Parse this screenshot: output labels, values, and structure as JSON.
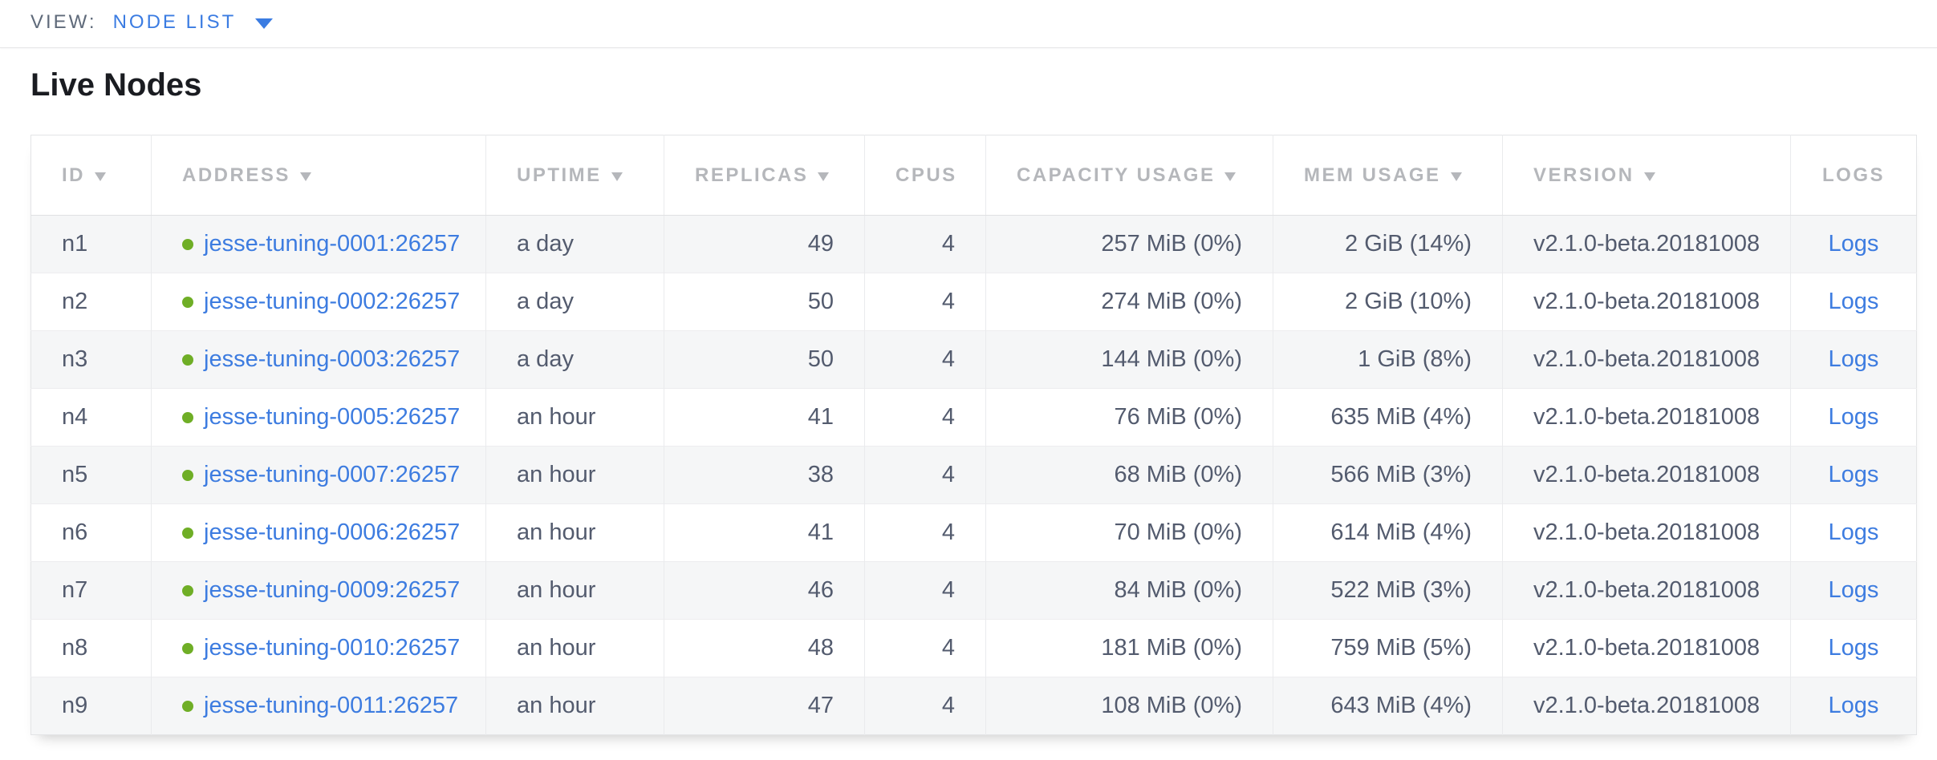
{
  "view_bar": {
    "label": "VIEW:",
    "selected": "NODE LIST",
    "dropdown_icon": "caret-down-icon"
  },
  "page": {
    "title": "Live Nodes"
  },
  "table": {
    "columns": [
      {
        "key": "id",
        "label": "ID",
        "sortable": true,
        "cell_align": "left",
        "header_align": "left"
      },
      {
        "key": "address",
        "label": "ADDRESS",
        "sortable": true,
        "cell_align": "left",
        "header_align": "left"
      },
      {
        "key": "uptime",
        "label": "UPTIME",
        "sortable": true,
        "cell_align": "left",
        "header_align": "left"
      },
      {
        "key": "replicas",
        "label": "REPLICAS",
        "sortable": true,
        "cell_align": "right",
        "header_align": "left"
      },
      {
        "key": "cpus",
        "label": "CPUS",
        "sortable": false,
        "cell_align": "right",
        "header_align": "left"
      },
      {
        "key": "capacity",
        "label": "CAPACITY USAGE",
        "sortable": true,
        "cell_align": "right",
        "header_align": "left"
      },
      {
        "key": "mem",
        "label": "MEM USAGE",
        "sortable": true,
        "cell_align": "right",
        "header_align": "left"
      },
      {
        "key": "version",
        "label": "VERSION",
        "sortable": true,
        "cell_align": "left",
        "header_align": "left"
      },
      {
        "key": "logs",
        "label": "LOGS",
        "sortable": false,
        "cell_align": "center",
        "header_align": "center"
      }
    ],
    "rows": [
      {
        "id": "n1",
        "status": "live",
        "address": "jesse-tuning-0001:26257",
        "uptime": "a day",
        "replicas": "49",
        "cpus": "4",
        "capacity": "257 MiB (0%)",
        "mem": "2 GiB (14%)",
        "version": "v2.1.0-beta.20181008",
        "logs": "Logs"
      },
      {
        "id": "n2",
        "status": "live",
        "address": "jesse-tuning-0002:26257",
        "uptime": "a day",
        "replicas": "50",
        "cpus": "4",
        "capacity": "274 MiB (0%)",
        "mem": "2 GiB (10%)",
        "version": "v2.1.0-beta.20181008",
        "logs": "Logs"
      },
      {
        "id": "n3",
        "status": "live",
        "address": "jesse-tuning-0003:26257",
        "uptime": "a day",
        "replicas": "50",
        "cpus": "4",
        "capacity": "144 MiB (0%)",
        "mem": "1 GiB (8%)",
        "version": "v2.1.0-beta.20181008",
        "logs": "Logs"
      },
      {
        "id": "n4",
        "status": "live",
        "address": "jesse-tuning-0005:26257",
        "uptime": "an hour",
        "replicas": "41",
        "cpus": "4",
        "capacity": "76 MiB (0%)",
        "mem": "635 MiB (4%)",
        "version": "v2.1.0-beta.20181008",
        "logs": "Logs"
      },
      {
        "id": "n5",
        "status": "live",
        "address": "jesse-tuning-0007:26257",
        "uptime": "an hour",
        "replicas": "38",
        "cpus": "4",
        "capacity": "68 MiB (0%)",
        "mem": "566 MiB (3%)",
        "version": "v2.1.0-beta.20181008",
        "logs": "Logs"
      },
      {
        "id": "n6",
        "status": "live",
        "address": "jesse-tuning-0006:26257",
        "uptime": "an hour",
        "replicas": "41",
        "cpus": "4",
        "capacity": "70 MiB (0%)",
        "mem": "614 MiB (4%)",
        "version": "v2.1.0-beta.20181008",
        "logs": "Logs"
      },
      {
        "id": "n7",
        "status": "live",
        "address": "jesse-tuning-0009:26257",
        "uptime": "an hour",
        "replicas": "46",
        "cpus": "4",
        "capacity": "84 MiB (0%)",
        "mem": "522 MiB (3%)",
        "version": "v2.1.0-beta.20181008",
        "logs": "Logs"
      },
      {
        "id": "n8",
        "status": "live",
        "address": "jesse-tuning-0010:26257",
        "uptime": "an hour",
        "replicas": "48",
        "cpus": "4",
        "capacity": "181 MiB (0%)",
        "mem": "759 MiB (5%)",
        "version": "v2.1.0-beta.20181008",
        "logs": "Logs"
      },
      {
        "id": "n9",
        "status": "live",
        "address": "jesse-tuning-0011:26257",
        "uptime": "an hour",
        "replicas": "47",
        "cpus": "4",
        "capacity": "108 MiB (0%)",
        "mem": "643 MiB (4%)",
        "version": "v2.1.0-beta.20181008",
        "logs": "Logs"
      }
    ]
  },
  "icons": {
    "dropdown": "caret-down-icon",
    "sort": "sort-desc-icon",
    "status": "live-status-dot-icon"
  },
  "colors": {
    "accent_blue": "#3b7ce2",
    "link_blue": "#3d7ce0",
    "live_green": "#6fae26",
    "header_gray": "#b5b7bb",
    "cell_text": "#535b6e",
    "view_label_gray": "#5f6a7a",
    "heading_text": "#1a1c21",
    "row_stripe": "#f5f6f7",
    "border": "#e3e4e6"
  }
}
